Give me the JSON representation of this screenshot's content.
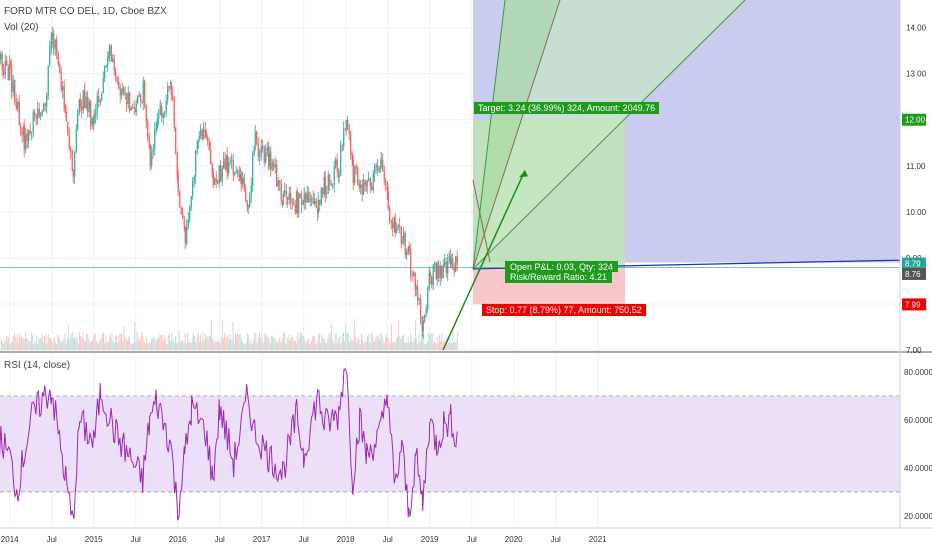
{
  "legend": {
    "main": "FORD MTR CO DEL, 1D, Cboe BZX",
    "vol": "Vol (20)",
    "rsi": "RSI (14, close)"
  },
  "colors": {
    "up": "#26a69a",
    "down": "#ef5350",
    "rsi_line": "#9c27b0",
    "rsi_band": "#e7d8f7",
    "profit_zone": "#bfe3b8",
    "loss_zone": "#f8c7c9",
    "forecast_zone": "#c6c8ee",
    "target_tag": "#1e9b1e",
    "stop_tag": "#f00000",
    "last_price_tag": "#555555"
  },
  "price_axis": {
    "ticks": [
      "14.00",
      "13.00",
      "12.00",
      "11.00",
      "10.00",
      "9.00",
      "8.00",
      "7.00"
    ],
    "labels": [
      {
        "value": "12.00",
        "tone": "target"
      },
      {
        "value": "8.79",
        "tone": "up"
      },
      {
        "value": "8.76",
        "tone": "last"
      },
      {
        "value": "7.99",
        "tone": "stop"
      }
    ]
  },
  "rsi_axis": {
    "ticks": [
      "80.0000",
      "60.0000",
      "40.0000",
      "20.0000"
    ]
  },
  "time_axis": {
    "ticks": [
      "2014",
      "Jul",
      "2015",
      "Jul",
      "2016",
      "Jul",
      "2017",
      "Jul",
      "2018",
      "Jul",
      "2019",
      "Jul",
      "2020",
      "Jul",
      "2021"
    ]
  },
  "position": {
    "target_label": "Target: 3.24 (36.99%) 324, Amount: 2049.76",
    "stop_label": "Stop: 0.77 (8.79%) 77, Amount: 750.52",
    "open_pnl_label": "Open P&L: 0.03, Qty: 324",
    "risk_reward_label": "Risk/Reward Ratio: 4.21"
  },
  "chart_data": [
    {
      "type": "candlestick",
      "title": "FORD MTR CO DEL, 1D, Cboe BZX",
      "x_range": [
        "2013-11",
        "2019-05"
      ],
      "ylim": [
        7.0,
        14.6
      ],
      "series": [
        {
          "name": "price",
          "points": [
            [
              "2013-11",
              13.4
            ],
            [
              "2014-01",
              13.0
            ],
            [
              "2014-03",
              11.6
            ],
            [
              "2014-06",
              12.4
            ],
            [
              "2014-07",
              14.0
            ],
            [
              "2014-09",
              12.0
            ],
            [
              "2014-10",
              11.0
            ],
            [
              "2014-11",
              12.5
            ],
            [
              "2015-01",
              12.0
            ],
            [
              "2015-03",
              13.5
            ],
            [
              "2015-05",
              12.6
            ],
            [
              "2015-07",
              12.2
            ],
            [
              "2015-08",
              12.6
            ],
            [
              "2015-09",
              11.2
            ],
            [
              "2015-10",
              12.0
            ],
            [
              "2015-12",
              12.7
            ],
            [
              "2016-01",
              10.5
            ],
            [
              "2016-02",
              9.5
            ],
            [
              "2016-04",
              11.6
            ],
            [
              "2016-05",
              11.8
            ],
            [
              "2016-06",
              10.7
            ],
            [
              "2016-08",
              11.0
            ],
            [
              "2016-10",
              10.8
            ],
            [
              "2016-11",
              10.2
            ],
            [
              "2016-12",
              11.5
            ],
            [
              "2017-02",
              11.2
            ],
            [
              "2017-04",
              10.3
            ],
            [
              "2017-06",
              10.2
            ],
            [
              "2017-07",
              10.4
            ],
            [
              "2017-09",
              10.2
            ],
            [
              "2017-10",
              10.6
            ],
            [
              "2017-12",
              11.0
            ],
            [
              "2018-01",
              12.0
            ],
            [
              "2018-02",
              10.8
            ],
            [
              "2018-04",
              10.5
            ],
            [
              "2018-06",
              11.0
            ],
            [
              "2018-07",
              10.2
            ],
            [
              "2018-08",
              9.6
            ],
            [
              "2018-09",
              9.5
            ],
            [
              "2018-10",
              9.0
            ],
            [
              "2018-11",
              8.3
            ],
            [
              "2018-12",
              7.5
            ],
            [
              "2019-01",
              8.6
            ],
            [
              "2019-02",
              8.7
            ],
            [
              "2019-04",
              9.0
            ],
            [
              "2019-05",
              8.8
            ]
          ]
        }
      ],
      "last_price": 8.76,
      "position": {
        "entry": 8.76,
        "target": 12.0,
        "stop": 7.99,
        "quantity": 324,
        "risk_reward": 4.21
      }
    },
    {
      "type": "bar",
      "title": "Vol (20)",
      "series": [
        {
          "name": "Vol (20)",
          "values": "daily volume bars, relative heights"
        }
      ]
    },
    {
      "type": "line",
      "title": "RSI (14, close)",
      "ylim": [
        15,
        87
      ],
      "band": [
        30,
        70
      ],
      "series": [
        {
          "name": "RSI (14, close)",
          "points": [
            [
              "2013-11",
              55
            ],
            [
              "2014-01",
              45
            ],
            [
              "2014-02",
              30
            ],
            [
              "2014-04",
              60
            ],
            [
              "2014-06",
              70
            ],
            [
              "2014-07",
              72
            ],
            [
              "2014-09",
              35
            ],
            [
              "2014-10",
              17
            ],
            [
              "2014-11",
              60
            ],
            [
              "2015-01",
              50
            ],
            [
              "2015-02",
              72
            ],
            [
              "2015-04",
              55
            ],
            [
              "2015-06",
              45
            ],
            [
              "2015-08",
              35
            ],
            [
              "2015-09",
              60
            ],
            [
              "2015-10",
              68
            ],
            [
              "2015-12",
              50
            ],
            [
              "2016-01",
              22
            ],
            [
              "2016-02",
              45
            ],
            [
              "2016-03",
              65
            ],
            [
              "2016-05",
              55
            ],
            [
              "2016-06",
              35
            ],
            [
              "2016-07",
              65
            ],
            [
              "2016-09",
              42
            ],
            [
              "2016-11",
              70
            ],
            [
              "2016-12",
              55
            ],
            [
              "2017-02",
              45
            ],
            [
              "2017-04",
              38
            ],
            [
              "2017-06",
              62
            ],
            [
              "2017-07",
              45
            ],
            [
              "2017-09",
              70
            ],
            [
              "2017-10",
              58
            ],
            [
              "2017-12",
              62
            ],
            [
              "2018-01",
              86
            ],
            [
              "2018-02",
              35
            ],
            [
              "2018-03",
              60
            ],
            [
              "2018-04",
              45
            ],
            [
              "2018-06",
              55
            ],
            [
              "2018-07",
              72
            ],
            [
              "2018-08",
              30
            ],
            [
              "2018-09",
              50
            ],
            [
              "2018-10",
              20
            ],
            [
              "2018-11",
              45
            ],
            [
              "2018-12",
              25
            ],
            [
              "2019-01",
              60
            ],
            [
              "2019-02",
              50
            ],
            [
              "2019-03",
              58
            ],
            [
              "2019-04",
              60
            ],
            [
              "2019-05",
              52
            ]
          ]
        }
      ]
    }
  ]
}
